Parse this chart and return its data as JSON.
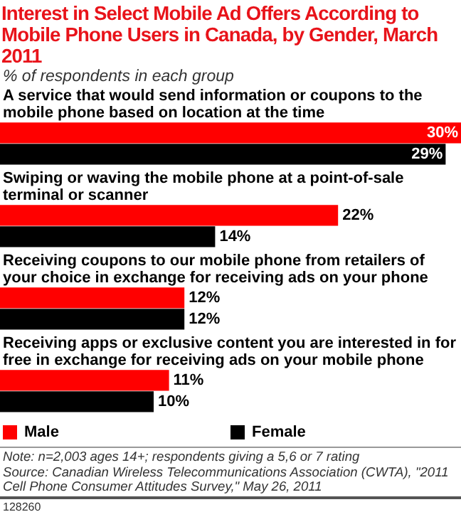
{
  "chart_data": {
    "type": "bar",
    "orientation": "horizontal",
    "title": "Interest in Select Mobile Ad Offers According to Mobile Phone Users in Canada, by Gender, March 2011",
    "subtitle": "% of respondents in each group",
    "categories": [
      "A service that would send information or coupons to the mobile phone based on location at the time",
      "Swiping or waving the mobile phone at a point-of-sale terminal or scanner",
      "Receiving coupons to our mobile phone from retailers of your choice in exchange for receiving ads on your phone",
      "Receiving apps or exclusive content you are interested in for free in exchange for receiving ads on your mobile phone"
    ],
    "series": [
      {
        "name": "Male",
        "color": "#ff0000",
        "values": [
          30,
          22,
          12,
          11
        ],
        "value_labels": [
          "30%",
          "22%",
          "12%",
          "11%"
        ]
      },
      {
        "name": "Female",
        "color": "#000000",
        "values": [
          29,
          14,
          12,
          10
        ],
        "value_labels": [
          "29%",
          "14%",
          "12%",
          "10%"
        ]
      }
    ],
    "legend": "bottom",
    "tick_labels": false,
    "annotations": [
      "Note: n=2,003 ages 14+; respondents giving a 5,6 or 7 rating",
      "Source: Canadian Wireless Telecommunications Association (CWTA), \"2011 Cell Phone Consumer Attitudes Survey,\" May 26, 2011",
      "128260"
    ]
  }
}
